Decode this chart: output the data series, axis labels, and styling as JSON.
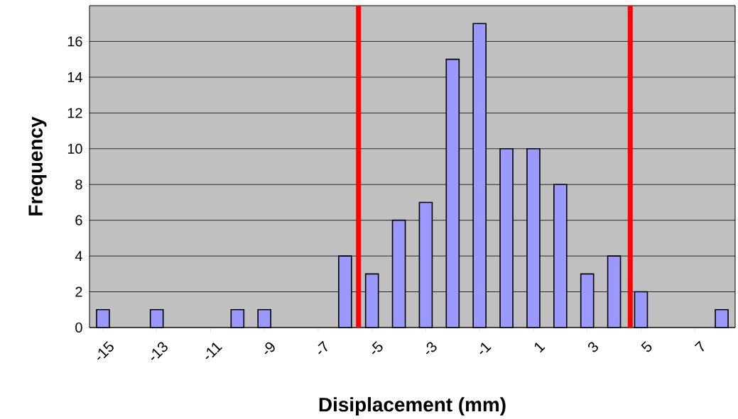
{
  "chart_data": {
    "type": "bar",
    "xlabel": "Disiplacement (mm)",
    "ylabel": "Frequency",
    "x": [
      -15,
      -14,
      -13,
      -12,
      -11,
      -10,
      -9,
      -8,
      -7,
      -6,
      -5,
      -4,
      -3,
      -2,
      -1,
      0,
      1,
      2,
      3,
      4,
      5,
      6,
      7,
      8
    ],
    "values": [
      1,
      0,
      1,
      0,
      0,
      1,
      1,
      0,
      0,
      4,
      3,
      6,
      7,
      15,
      17,
      10,
      10,
      8,
      3,
      4,
      2,
      0,
      0,
      1
    ],
    "color": "#9999ff",
    "xlim": [
      -15.5,
      8.5
    ],
    "xticks": [
      -15,
      -13,
      -11,
      -9,
      -7,
      -5,
      -3,
      -1,
      1,
      3,
      5,
      7
    ],
    "ylim": [
      0,
      18
    ],
    "yticks": [
      0,
      2,
      4,
      6,
      8,
      10,
      12,
      14,
      16
    ],
    "grid": "y",
    "ref_lines": [
      {
        "axis": "x",
        "value": -5.5,
        "color": "#ff0000"
      },
      {
        "axis": "x",
        "value": 4.6,
        "color": "#ff0000"
      }
    ]
  }
}
